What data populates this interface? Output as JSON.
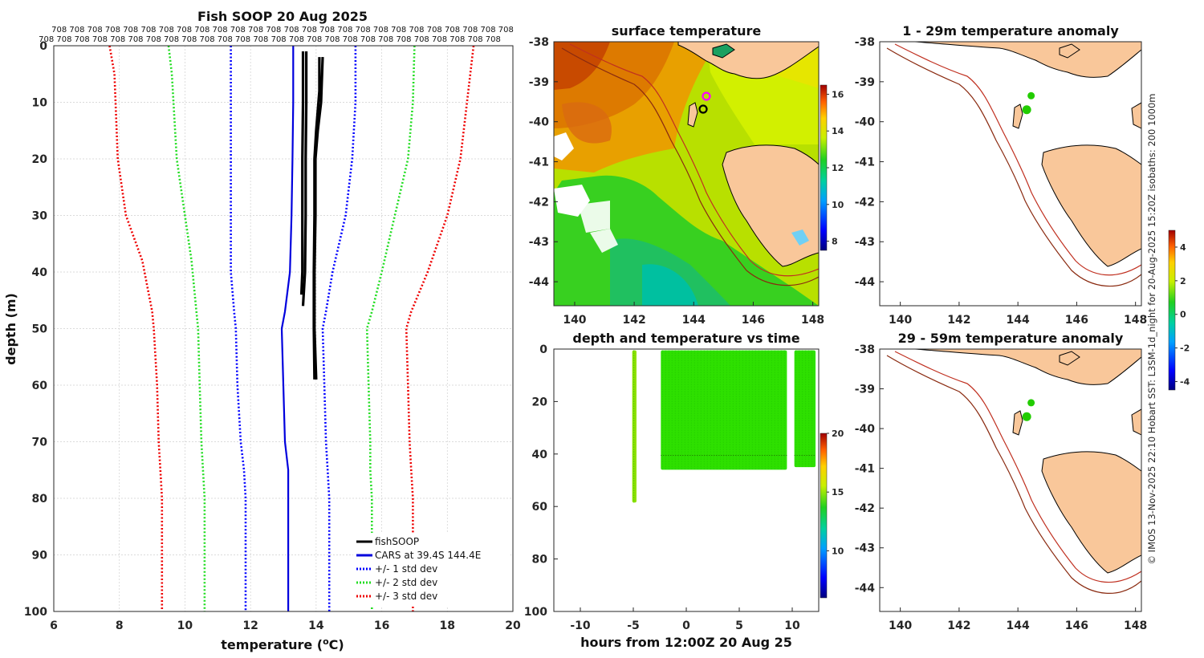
{
  "colors": {
    "fishsoop": "#000000",
    "cars": "#0000dd",
    "std1": "#0000ff",
    "std2": "#22dd22",
    "std3": "#ee0000",
    "land": "#f9c79a",
    "isobath": "#c03020",
    "anomaly_marker": "#22cc00"
  },
  "profile_top_labels": {
    "row1": "708 708 708 708 708 708 708 708 708 708 708 708 708 708 708 708 708 708 708 708 708 708 708 708 708 708",
    "row2": "708 708 708 708 708 708 708 708 708 708 708 708 708 708 708 708 708 708 708 708 708 708 708 708 708 708"
  },
  "chart_data": [
    {
      "id": "profile",
      "type": "line",
      "title": "Fish SOOP 20 Aug 2025",
      "xlabel": "temperature (°C)",
      "xlabel_parts": [
        "temperature (",
        "o",
        "C)"
      ],
      "ylabel": "depth (m)",
      "xlim": [
        6,
        20
      ],
      "ylim": [
        0,
        100
      ],
      "y_reversed": true,
      "xticks": [
        6,
        8,
        10,
        12,
        14,
        16,
        18,
        20
      ],
      "yticks": [
        0,
        10,
        20,
        30,
        40,
        50,
        60,
        70,
        80,
        90,
        100
      ],
      "legend": [
        "fishSOOP",
        "CARS at 39.4S 144.4E",
        "+/- 1 std dev",
        "+/- 2 std dev",
        "+/- 3 std dev"
      ],
      "legend_position": "bottom-right",
      "series": [
        {
          "name": "CARS at 39.4S 144.4E",
          "style": "solid",
          "depth": [
            0,
            10,
            20,
            30,
            40,
            47,
            50,
            60,
            70,
            75,
            80,
            90,
            100
          ],
          "temp": [
            13.3,
            13.3,
            13.28,
            13.25,
            13.2,
            13.05,
            12.95,
            13.0,
            13.05,
            13.15,
            13.15,
            13.15,
            13.15
          ]
        },
        {
          "name": "-1 std",
          "style": "dotted",
          "depth": [
            0,
            10,
            20,
            30,
            40,
            47,
            50,
            60,
            70,
            75,
            80,
            90,
            100
          ],
          "temp": [
            11.4,
            11.4,
            11.4,
            11.4,
            11.4,
            11.5,
            11.55,
            11.6,
            11.7,
            11.8,
            11.85,
            11.85,
            11.85
          ]
        },
        {
          "name": "+1 std",
          "style": "dotted",
          "depth": [
            0,
            10,
            20,
            30,
            40,
            47,
            50,
            60,
            70,
            75,
            80,
            90,
            100
          ],
          "temp": [
            15.2,
            15.2,
            15.1,
            14.9,
            14.5,
            14.3,
            14.2,
            14.25,
            14.3,
            14.35,
            14.4,
            14.4,
            14.4
          ]
        },
        {
          "name": "-2 std",
          "style": "dotted",
          "depth": [
            0,
            5,
            20,
            30,
            38,
            47,
            50,
            60,
            70,
            75,
            80,
            90,
            100
          ],
          "temp": [
            9.5,
            9.6,
            9.75,
            10.0,
            10.2,
            10.35,
            10.4,
            10.45,
            10.5,
            10.55,
            10.6,
            10.6,
            10.6
          ]
        },
        {
          "name": "+2 std",
          "style": "dotted",
          "depth": [
            0,
            10,
            20,
            30,
            40,
            47,
            50,
            60,
            70,
            75,
            80,
            90,
            100
          ],
          "temp": [
            17.0,
            16.95,
            16.8,
            16.4,
            16.0,
            15.7,
            15.55,
            15.6,
            15.65,
            15.65,
            15.7,
            15.7,
            15.7
          ]
        },
        {
          "name": "-3 std",
          "style": "dotted",
          "depth": [
            0,
            5,
            20,
            30,
            38,
            47,
            50,
            60,
            70,
            75,
            80,
            90,
            100
          ],
          "temp": [
            7.7,
            7.85,
            7.95,
            8.2,
            8.7,
            9.0,
            9.05,
            9.15,
            9.2,
            9.25,
            9.3,
            9.3,
            9.3
          ]
        },
        {
          "name": "+3 std",
          "style": "dotted",
          "depth": [
            0,
            10,
            20,
            30,
            40,
            47,
            50,
            60,
            70,
            75,
            80,
            90,
            100
          ],
          "temp": [
            18.8,
            18.6,
            18.4,
            18.0,
            17.4,
            16.9,
            16.75,
            16.8,
            16.85,
            16.9,
            16.95,
            16.95,
            16.95
          ]
        },
        {
          "name": "fishSOOP cast A",
          "style": "bold",
          "depth": [
            1,
            10,
            20,
            30,
            40,
            44
          ],
          "temp": [
            13.6,
            13.6,
            13.58,
            13.58,
            13.58,
            13.55
          ]
        },
        {
          "name": "fishSOOP cast B",
          "style": "bold",
          "depth": [
            1,
            10,
            20,
            30,
            40,
            46
          ],
          "temp": [
            13.7,
            13.7,
            13.68,
            13.68,
            13.66,
            13.6
          ]
        },
        {
          "name": "fishSOOP cast C",
          "style": "bold",
          "depth": [
            2,
            8,
            15,
            20,
            30,
            40,
            50,
            59
          ],
          "temp": [
            14.1,
            14.1,
            14.0,
            13.95,
            13.95,
            13.93,
            13.93,
            13.95
          ]
        },
        {
          "name": "fishSOOP cast D",
          "style": "bold",
          "depth": [
            2,
            10,
            15,
            20,
            30,
            40,
            50,
            59
          ],
          "temp": [
            14.2,
            14.15,
            14.05,
            13.98,
            13.98,
            13.95,
            13.95,
            14.0
          ]
        }
      ]
    },
    {
      "id": "sst_map",
      "type": "heatmap",
      "title": "surface temperature",
      "xlim": [
        139.3,
        148.2
      ],
      "ylim": [
        -44.6,
        -38
      ],
      "xticks": [
        140,
        142,
        144,
        146,
        148
      ],
      "yticks": [
        -38,
        -39,
        -40,
        -41,
        -42,
        -43,
        -44
      ],
      "colorbar_ticks": [
        8,
        10,
        12,
        14,
        16
      ],
      "colorbar_range": [
        7.5,
        16.5
      ],
      "markers": [
        {
          "lon": 144.45,
          "lat": -39.35,
          "color": "#ff00ff"
        },
        {
          "lon": 144.3,
          "lat": -39.7,
          "color": "#000000"
        }
      ]
    },
    {
      "id": "depth_time",
      "type": "scatter",
      "title": "depth and temperature vs time",
      "xlabel": "hours from 12:00Z 20 Aug 25",
      "xlim": [
        -12.5,
        12.5
      ],
      "ylim": [
        0,
        100
      ],
      "y_reversed": true,
      "xticks": [
        -10,
        -5,
        0,
        5,
        10
      ],
      "yticks": [
        0,
        20,
        40,
        60,
        80,
        100
      ],
      "colorbar_ticks": [
        10,
        15,
        20
      ],
      "colorbar_range": [
        6,
        20
      ],
      "blocks": [
        {
          "t_start": -5.1,
          "t_end": -4.7,
          "depth_top": 0.5,
          "depth_bottom": 58.5,
          "temp": 14.0
        },
        {
          "t_start": -2.4,
          "t_end": 9.5,
          "depth_top": 0.5,
          "depth_bottom": 46,
          "temp": 13.6
        },
        {
          "t_start": 10.2,
          "t_end": 12.2,
          "depth_top": 0.5,
          "depth_bottom": 45,
          "temp": 13.6
        }
      ]
    },
    {
      "id": "anom_1_29",
      "type": "scatter",
      "title": "1 - 29m temperature anomaly",
      "xlim": [
        139.3,
        148.2
      ],
      "ylim": [
        -44.6,
        -38
      ],
      "xticks": [
        140,
        142,
        144,
        146,
        148
      ],
      "yticks": [
        -38,
        -39,
        -40,
        -41,
        -42,
        -43,
        -44
      ],
      "points": [
        {
          "lon": 144.45,
          "lat": -39.35,
          "anomaly": 0.3
        },
        {
          "lon": 144.3,
          "lat": -39.7,
          "anomaly": 0.4
        }
      ]
    },
    {
      "id": "anom_29_59",
      "type": "scatter",
      "title": "29 - 59m temperature anomaly",
      "xlim": [
        139.3,
        148.2
      ],
      "ylim": [
        -44.6,
        -38
      ],
      "xticks": [
        140,
        142,
        144,
        146,
        148
      ],
      "yticks": [
        -38,
        -39,
        -40,
        -41,
        -42,
        -43,
        -44
      ],
      "points": [
        {
          "lon": 144.45,
          "lat": -39.35,
          "anomaly": 0.3
        },
        {
          "lon": 144.3,
          "lat": -39.7,
          "anomaly": 0.4
        }
      ],
      "colorbar_ticks": [
        -4,
        -2,
        0,
        2,
        4
      ],
      "colorbar_range": [
        -4.5,
        5
      ]
    }
  ],
  "side_note": "© IMOS 13-Nov-2025 22:10 Hobart SST: L3SM-1d_night for 20-Aug-2025 15:20Z isobaths: 200  1000m"
}
